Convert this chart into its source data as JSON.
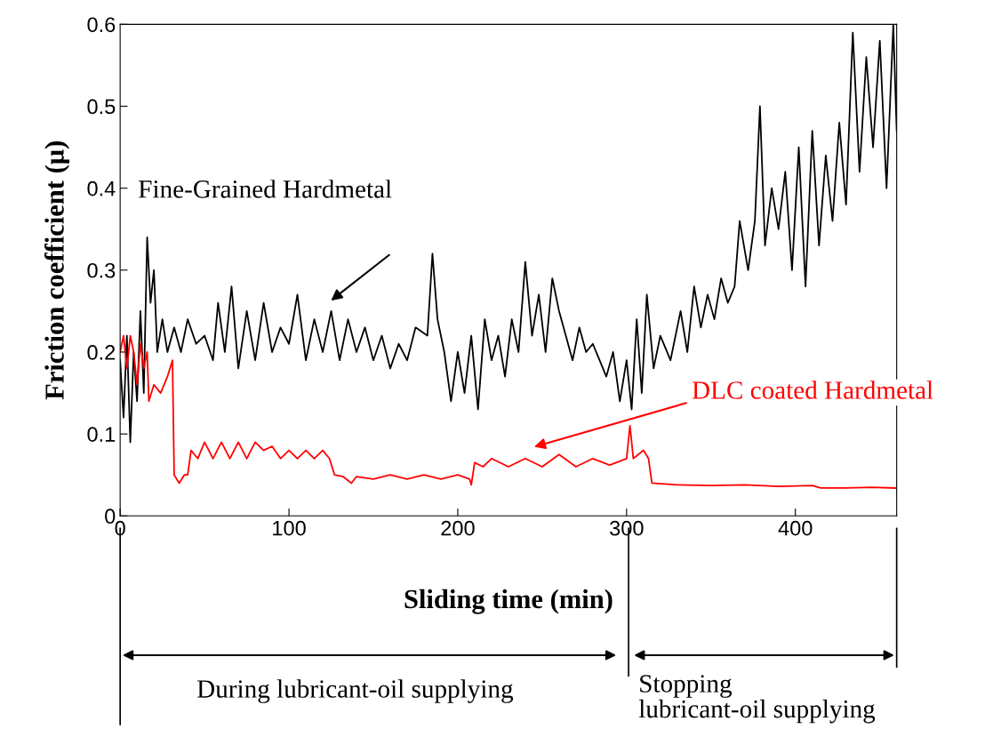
{
  "chart_data": {
    "type": "line",
    "xlabel": "Sliding time (min)",
    "ylabel": "Friction coefficient (μ)",
    "xlim": [
      0,
      460
    ],
    "xticks": [
      0,
      100,
      200,
      300,
      400
    ],
    "ylim": [
      0,
      0.6
    ],
    "yticks": [
      0,
      0.1,
      0.2,
      0.3,
      0.4,
      0.5,
      0.6
    ],
    "grid": false,
    "series": [
      {
        "color": "#000000",
        "x": [
          0,
          2,
          4,
          6,
          8,
          10,
          12,
          14,
          16,
          18,
          20,
          22,
          25,
          28,
          32,
          36,
          40,
          45,
          50,
          55,
          58,
          62,
          66,
          70,
          75,
          80,
          85,
          90,
          95,
          100,
          105,
          110,
          115,
          120,
          125,
          130,
          135,
          140,
          145,
          150,
          155,
          160,
          165,
          170,
          175,
          182,
          185,
          188,
          192,
          196,
          200,
          204,
          208,
          212,
          216,
          220,
          224,
          228,
          232,
          236,
          240,
          244,
          248,
          252,
          256,
          260,
          264,
          268,
          272,
          276,
          280,
          284,
          288,
          292,
          296,
          300,
          303,
          306,
          309,
          312,
          316,
          320,
          326,
          332,
          336,
          340,
          344,
          348,
          352,
          356,
          360,
          364,
          367,
          372,
          376,
          379,
          382,
          386,
          390,
          394,
          398,
          402,
          406,
          410,
          414,
          418,
          422,
          426,
          430,
          434,
          438,
          442,
          446,
          450,
          454,
          458,
          460
        ],
        "values": [
          0.19,
          0.12,
          0.22,
          0.09,
          0.2,
          0.14,
          0.25,
          0.15,
          0.34,
          0.26,
          0.3,
          0.2,
          0.24,
          0.2,
          0.23,
          0.2,
          0.24,
          0.21,
          0.22,
          0.19,
          0.26,
          0.2,
          0.28,
          0.18,
          0.25,
          0.19,
          0.26,
          0.2,
          0.23,
          0.21,
          0.27,
          0.19,
          0.24,
          0.2,
          0.25,
          0.19,
          0.24,
          0.2,
          0.23,
          0.19,
          0.22,
          0.18,
          0.21,
          0.19,
          0.23,
          0.22,
          0.32,
          0.24,
          0.2,
          0.14,
          0.2,
          0.15,
          0.22,
          0.13,
          0.24,
          0.19,
          0.22,
          0.17,
          0.24,
          0.2,
          0.31,
          0.22,
          0.27,
          0.2,
          0.29,
          0.25,
          0.22,
          0.19,
          0.23,
          0.2,
          0.21,
          0.19,
          0.17,
          0.2,
          0.14,
          0.19,
          0.13,
          0.24,
          0.15,
          0.27,
          0.18,
          0.22,
          0.19,
          0.25,
          0.2,
          0.28,
          0.23,
          0.27,
          0.24,
          0.29,
          0.26,
          0.28,
          0.36,
          0.3,
          0.36,
          0.5,
          0.33,
          0.4,
          0.35,
          0.42,
          0.3,
          0.45,
          0.28,
          0.47,
          0.33,
          0.44,
          0.36,
          0.48,
          0.38,
          0.59,
          0.42,
          0.56,
          0.45,
          0.58,
          0.4,
          0.6,
          0.47
        ]
      },
      {
        "color": "#ff0000",
        "x": [
          0,
          2,
          4,
          6,
          8,
          10,
          12,
          14,
          16,
          17,
          20,
          24,
          28,
          31,
          32,
          35,
          38,
          40,
          42,
          46,
          50,
          55,
          60,
          65,
          70,
          75,
          80,
          85,
          90,
          95,
          100,
          105,
          110,
          115,
          120,
          124,
          127,
          132,
          137,
          140,
          150,
          160,
          170,
          180,
          190,
          200,
          207,
          208,
          210,
          215,
          220,
          230,
          240,
          250,
          260,
          270,
          280,
          290,
          300,
          302,
          304,
          310,
          313,
          315,
          330,
          350,
          370,
          390,
          410,
          415,
          430,
          445,
          460
        ],
        "values": [
          0.2,
          0.22,
          0.18,
          0.22,
          0.2,
          0.16,
          0.21,
          0.18,
          0.2,
          0.14,
          0.16,
          0.15,
          0.17,
          0.19,
          0.05,
          0.04,
          0.05,
          0.05,
          0.08,
          0.07,
          0.09,
          0.07,
          0.09,
          0.07,
          0.09,
          0.07,
          0.09,
          0.08,
          0.085,
          0.07,
          0.08,
          0.07,
          0.08,
          0.07,
          0.08,
          0.07,
          0.05,
          0.048,
          0.04,
          0.048,
          0.045,
          0.05,
          0.045,
          0.05,
          0.045,
          0.05,
          0.045,
          0.038,
          0.065,
          0.06,
          0.07,
          0.06,
          0.07,
          0.06,
          0.075,
          0.06,
          0.07,
          0.062,
          0.07,
          0.11,
          0.07,
          0.08,
          0.07,
          0.04,
          0.038,
          0.037,
          0.038,
          0.036,
          0.037,
          0.034,
          0.034,
          0.035,
          0.034
        ]
      }
    ],
    "annotations": [
      "Fine-Grained Hardmetal",
      "DLC coated Hardmetal",
      "During lubricant-oil supplying",
      "Stopping\nlubricant-oil supplying"
    ]
  }
}
